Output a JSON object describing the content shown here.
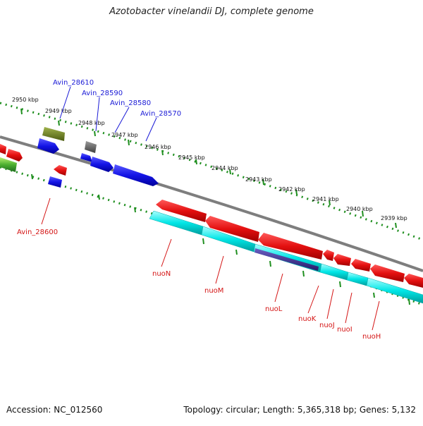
{
  "title": "Azotobacter vinelandii DJ, complete genome",
  "footer": {
    "accession": "Accession: NC_012560",
    "topology": "Topology: circular; Length: 5,365,318 bp; Genes: 5,132"
  },
  "scale_ticks": [
    "2950 kbp",
    "2949 kbp",
    "2948 kbp",
    "2947 kbp",
    "2946 kbp",
    "2945 kbp",
    "2944 kbp",
    "2943 kbp",
    "2942 kbp",
    "2941 kbp",
    "2940 kbp",
    "2939 kbp"
  ],
  "gene_labels": {
    "forward": [
      "Avin_28610",
      "Avin_28590",
      "Avin_28580",
      "Avin_28570"
    ],
    "reverse": [
      "Avin_28600",
      "nuoN",
      "nuoM",
      "nuoL",
      "nuoK",
      "nuoJ",
      "nuoI",
      "nuoH"
    ]
  },
  "colors": {
    "backbone": "#808080",
    "forward_cds": "#1010e0",
    "reverse_cds": "#e01010",
    "cyan_track": "#00e8e8",
    "olive": "#6b7f1e",
    "gray_feature": "#6a6a6a",
    "navy_feature": "#3a2f8a",
    "green_feature": "#2f8f2f",
    "scale_dots": "#1f8f1f",
    "label_blue": "#1a1ad6",
    "label_red": "#d41515"
  }
}
